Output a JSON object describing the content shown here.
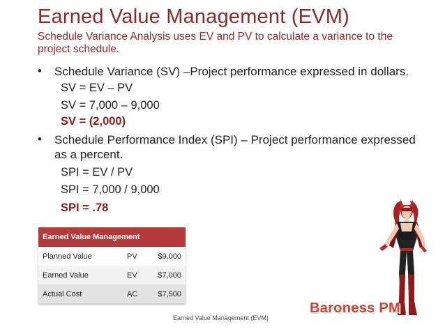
{
  "slide": {
    "title": "Earned Value Management (EVM)",
    "subtitle": "Schedule Variance Analysis uses EV and PV to calculate a variance to the project schedule.",
    "bullets": [
      {
        "text": "Schedule Variance (SV) –Project performance expressed in dollars.",
        "lines": [
          "SV = EV – PV",
          "SV = 7,000 – 9,000",
          "SV = (2,000)"
        ]
      },
      {
        "text": "Schedule Performance Index (SPI) – Project performance expressed as a percent.",
        "lines": [
          "SPI = EV / PV",
          "SPI = 7,000 / 9,000",
          "SPI = .78"
        ]
      }
    ],
    "bullet_glyph": "•",
    "accent_color": "#8c2a2a"
  },
  "table": {
    "header": "Earned Value Management",
    "rows": [
      {
        "label": "Planned Value",
        "code": "PV",
        "value": "$9,000"
      },
      {
        "label": "Earned Value",
        "code": "EV",
        "value": "$7,000"
      },
      {
        "label": "Actual Cost",
        "code": "AC",
        "value": "$7,500"
      }
    ],
    "header_color": "#b53a3a"
  },
  "footer": {
    "text": "Earned Value Management (EVM)"
  },
  "brand": {
    "text": "Baroness PM",
    "color": "#d0412f"
  },
  "illustration": {
    "icon": "superheroine-character-illustration"
  }
}
